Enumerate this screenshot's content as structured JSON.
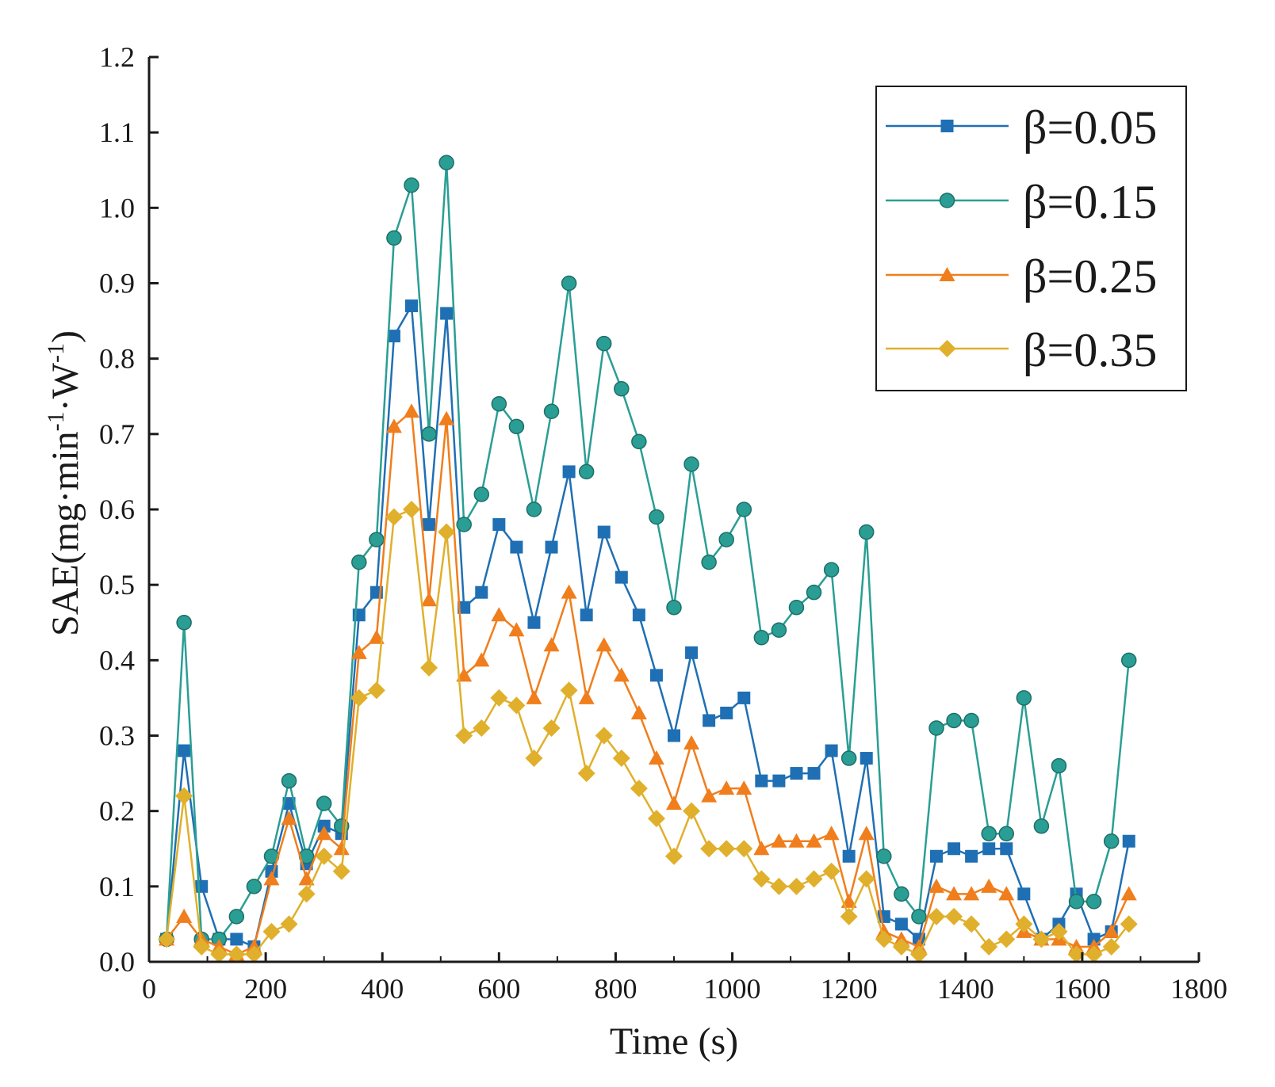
{
  "chart_data": {
    "type": "line",
    "xlabel": "Time (s)",
    "ylabel_main": "SAE(mg·min",
    "ylabel_sup1": "-1",
    "ylabel_mid": "·W",
    "ylabel_sup2": "-1",
    "ylabel_end": ")",
    "xlim": [
      0,
      1800
    ],
    "ylim": [
      0,
      1.2
    ],
    "x_ticks": [
      "0",
      "200",
      "400",
      "600",
      "800",
      "1000",
      "1200",
      "1400",
      "1600",
      "1800"
    ],
    "y_ticks": [
      "0.0",
      "0.1",
      "0.2",
      "0.3",
      "0.4",
      "0.5",
      "0.6",
      "0.7",
      "0.8",
      "0.9",
      "1.0",
      "1.1",
      "1.2"
    ],
    "grid": false,
    "legend_position": "top-right",
    "x": [
      30,
      60,
      90,
      120,
      150,
      180,
      210,
      240,
      270,
      300,
      330,
      360,
      390,
      420,
      450,
      480,
      510,
      540,
      570,
      600,
      630,
      660,
      690,
      720,
      750,
      780,
      810,
      840,
      870,
      900,
      930,
      960,
      990,
      1020,
      1050,
      1080,
      1110,
      1140,
      1170,
      1200,
      1230,
      1260,
      1290,
      1320,
      1350,
      1380,
      1410,
      1440,
      1470,
      1500,
      1530,
      1560,
      1590,
      1620,
      1650,
      1680
    ],
    "series": [
      {
        "name": "β=0.05",
        "color": "#1f6fb4",
        "marker": "square",
        "values": [
          0.03,
          0.28,
          0.1,
          0.03,
          0.03,
          0.02,
          0.12,
          0.21,
          0.13,
          0.18,
          0.17,
          0.46,
          0.49,
          0.83,
          0.87,
          0.58,
          0.86,
          0.47,
          0.49,
          0.58,
          0.55,
          0.45,
          0.55,
          0.65,
          0.46,
          0.57,
          0.51,
          0.46,
          0.38,
          0.3,
          0.41,
          0.32,
          0.33,
          0.35,
          0.24,
          0.24,
          0.25,
          0.25,
          0.28,
          0.14,
          0.27,
          0.06,
          0.05,
          0.03,
          0.14,
          0.15,
          0.14,
          0.15,
          0.15,
          0.09,
          0.03,
          0.05,
          0.09,
          0.03,
          0.04,
          0.16
        ]
      },
      {
        "name": "β=0.15",
        "color": "#2a9e94",
        "marker": "circle",
        "values": [
          0.03,
          0.45,
          0.03,
          0.03,
          0.06,
          0.1,
          0.14,
          0.24,
          0.14,
          0.21,
          0.18,
          0.53,
          0.56,
          0.96,
          1.03,
          0.7,
          1.06,
          0.58,
          0.62,
          0.74,
          0.71,
          0.6,
          0.73,
          0.9,
          0.65,
          0.82,
          0.76,
          0.69,
          0.59,
          0.47,
          0.66,
          0.53,
          0.56,
          0.6,
          0.43,
          0.44,
          0.47,
          0.49,
          0.52,
          0.27,
          0.57,
          0.14,
          0.09,
          0.06,
          0.31,
          0.32,
          0.32,
          0.17,
          0.17,
          0.35,
          0.18,
          0.26,
          0.08,
          0.08,
          0.16,
          0.4
        ]
      },
      {
        "name": "β=0.25",
        "color": "#f07e1c",
        "marker": "triangle",
        "values": [
          0.03,
          0.06,
          0.03,
          0.02,
          0.01,
          0.02,
          0.11,
          0.19,
          0.11,
          0.17,
          0.15,
          0.41,
          0.43,
          0.71,
          0.73,
          0.48,
          0.72,
          0.38,
          0.4,
          0.46,
          0.44,
          0.35,
          0.42,
          0.49,
          0.35,
          0.42,
          0.38,
          0.33,
          0.27,
          0.21,
          0.29,
          0.22,
          0.23,
          0.23,
          0.15,
          0.16,
          0.16,
          0.16,
          0.17,
          0.08,
          0.17,
          0.04,
          0.03,
          0.02,
          0.1,
          0.09,
          0.09,
          0.1,
          0.09,
          0.04,
          0.03,
          0.03,
          0.02,
          0.02,
          0.04,
          0.09
        ]
      },
      {
        "name": "β=0.35",
        "color": "#e0b02c",
        "marker": "diamond",
        "values": [
          0.03,
          0.22,
          0.02,
          0.01,
          0.01,
          0.01,
          0.04,
          0.05,
          0.09,
          0.14,
          0.12,
          0.35,
          0.36,
          0.59,
          0.6,
          0.39,
          0.57,
          0.3,
          0.31,
          0.35,
          0.34,
          0.27,
          0.31,
          0.36,
          0.25,
          0.3,
          0.27,
          0.23,
          0.19,
          0.14,
          0.2,
          0.15,
          0.15,
          0.15,
          0.11,
          0.1,
          0.1,
          0.11,
          0.12,
          0.06,
          0.11,
          0.03,
          0.02,
          0.01,
          0.06,
          0.06,
          0.05,
          0.02,
          0.03,
          0.05,
          0.03,
          0.04,
          0.01,
          0.01,
          0.02,
          0.05
        ]
      }
    ]
  }
}
